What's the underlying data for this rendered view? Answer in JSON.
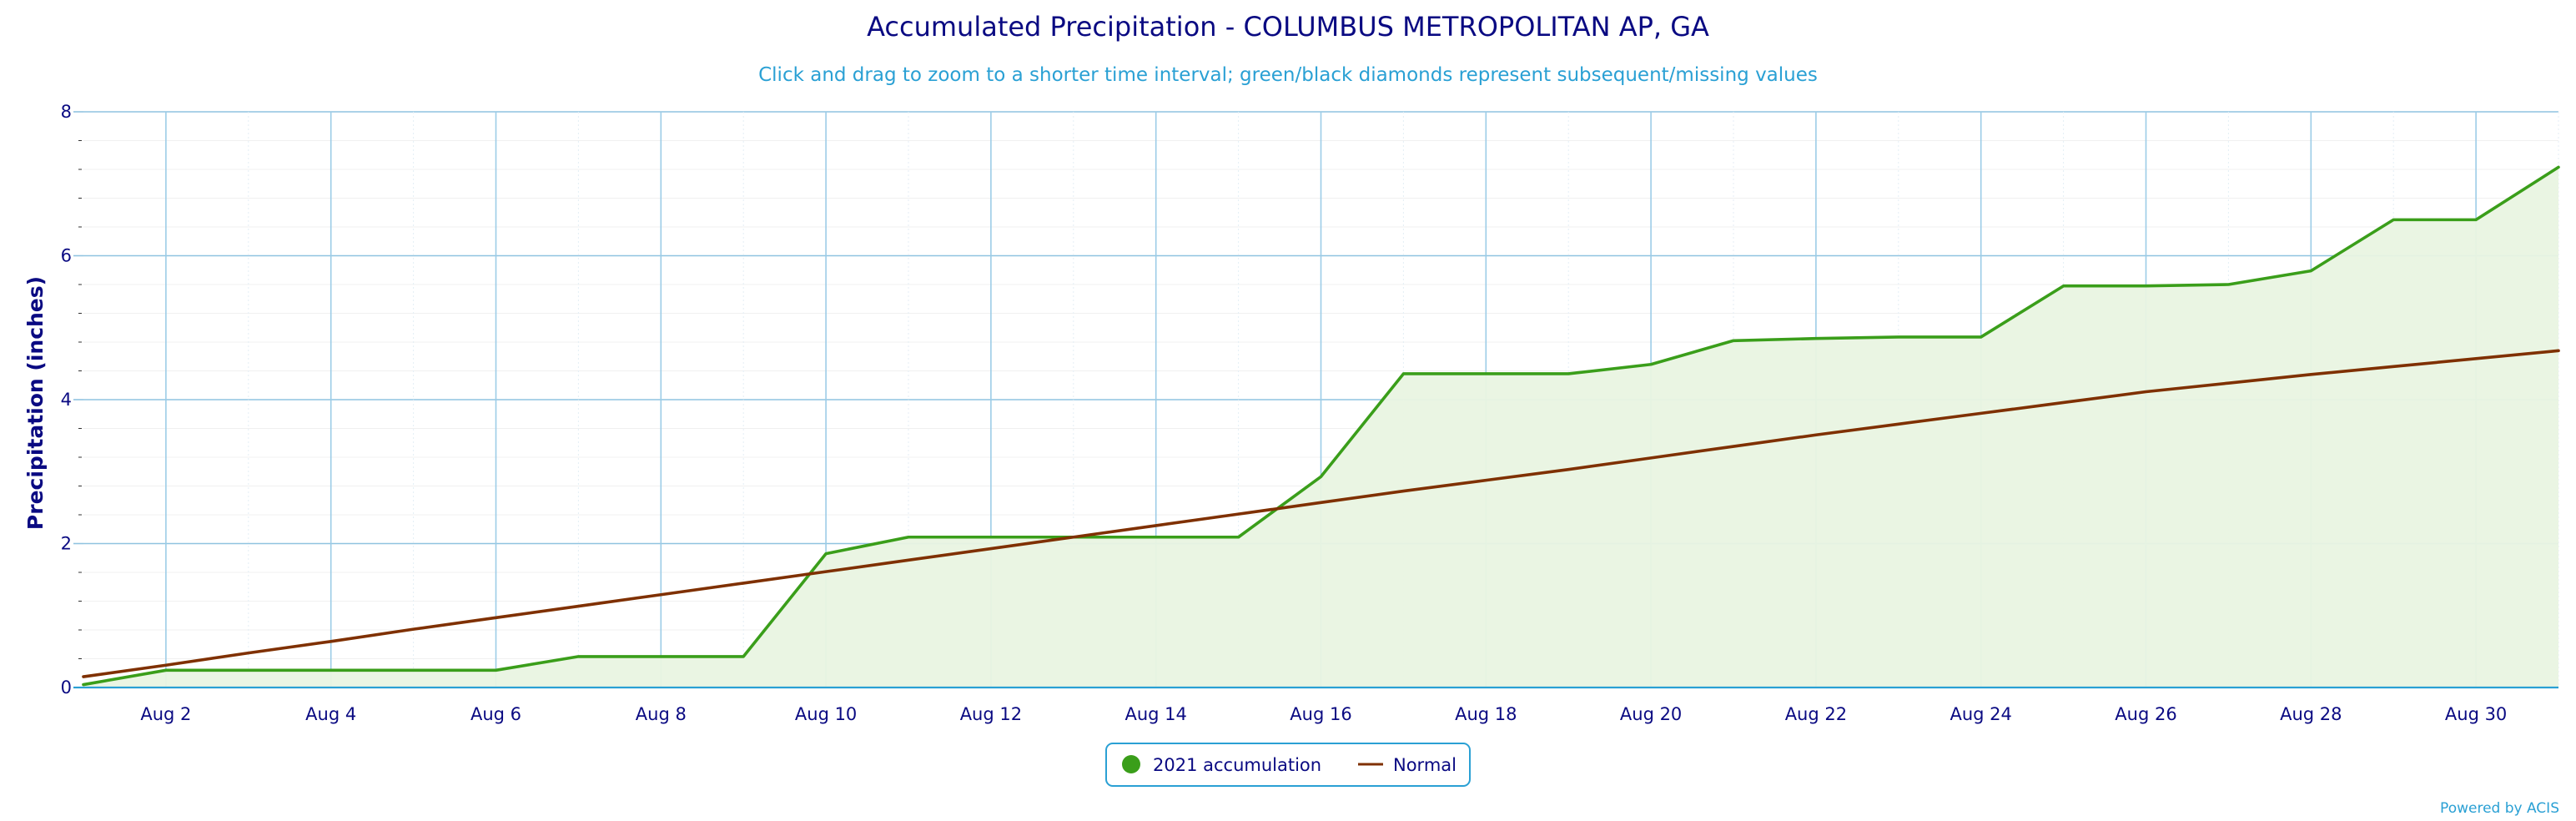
{
  "chart_data": {
    "type": "area",
    "title": "Accumulated Precipitation - COLUMBUS METROPOLITAN AP, GA",
    "subtitle": "Click and drag to zoom to a shorter time interval; green/black diamonds represent subsequent/missing values",
    "xlabel": "",
    "ylabel": "Precipitation (inches)",
    "x_tick_labels": [
      "Aug 2",
      "Aug 4",
      "Aug 6",
      "Aug 8",
      "Aug 10",
      "Aug 12",
      "Aug 14",
      "Aug 16",
      "Aug 18",
      "Aug 20",
      "Aug 22",
      "Aug 24",
      "Aug 26",
      "Aug 28",
      "Aug 30"
    ],
    "y_tick_labels": [
      "0",
      "2",
      "4",
      "6",
      "8"
    ],
    "xlim": [
      1,
      31
    ],
    "ylim": [
      0,
      8
    ],
    "grid": true,
    "legend_position": "bottom-center",
    "x": [
      1,
      2,
      3,
      4,
      5,
      6,
      7,
      8,
      9,
      10,
      11,
      12,
      13,
      14,
      15,
      16,
      17,
      18,
      19,
      20,
      21,
      22,
      23,
      24,
      25,
      26,
      27,
      28,
      29,
      30,
      31
    ],
    "series": [
      {
        "name": "2021 accumulation",
        "color": "#3a9e1a",
        "fill": "#e9f4e2",
        "values": [
          0.04,
          0.24,
          0.24,
          0.24,
          0.24,
          0.24,
          0.43,
          0.43,
          0.43,
          1.86,
          2.09,
          2.09,
          2.09,
          2.09,
          2.09,
          2.93,
          4.36,
          4.36,
          4.36,
          4.49,
          4.82,
          4.85,
          4.87,
          4.87,
          5.58,
          5.58,
          5.6,
          5.79,
          6.5,
          6.5,
          7.23
        ]
      },
      {
        "name": "Normal",
        "color": "#7f3000",
        "values": [
          0.15,
          0.31,
          0.48,
          0.64,
          0.81,
          0.97,
          1.13,
          1.29,
          1.45,
          1.61,
          1.77,
          1.93,
          2.09,
          2.25,
          2.41,
          2.57,
          2.73,
          2.88,
          3.03,
          3.19,
          3.35,
          3.51,
          3.66,
          3.81,
          3.96,
          4.11,
          4.23,
          4.35,
          4.46,
          4.57,
          4.68
        ]
      }
    ]
  },
  "credits": "Powered by ACIS"
}
